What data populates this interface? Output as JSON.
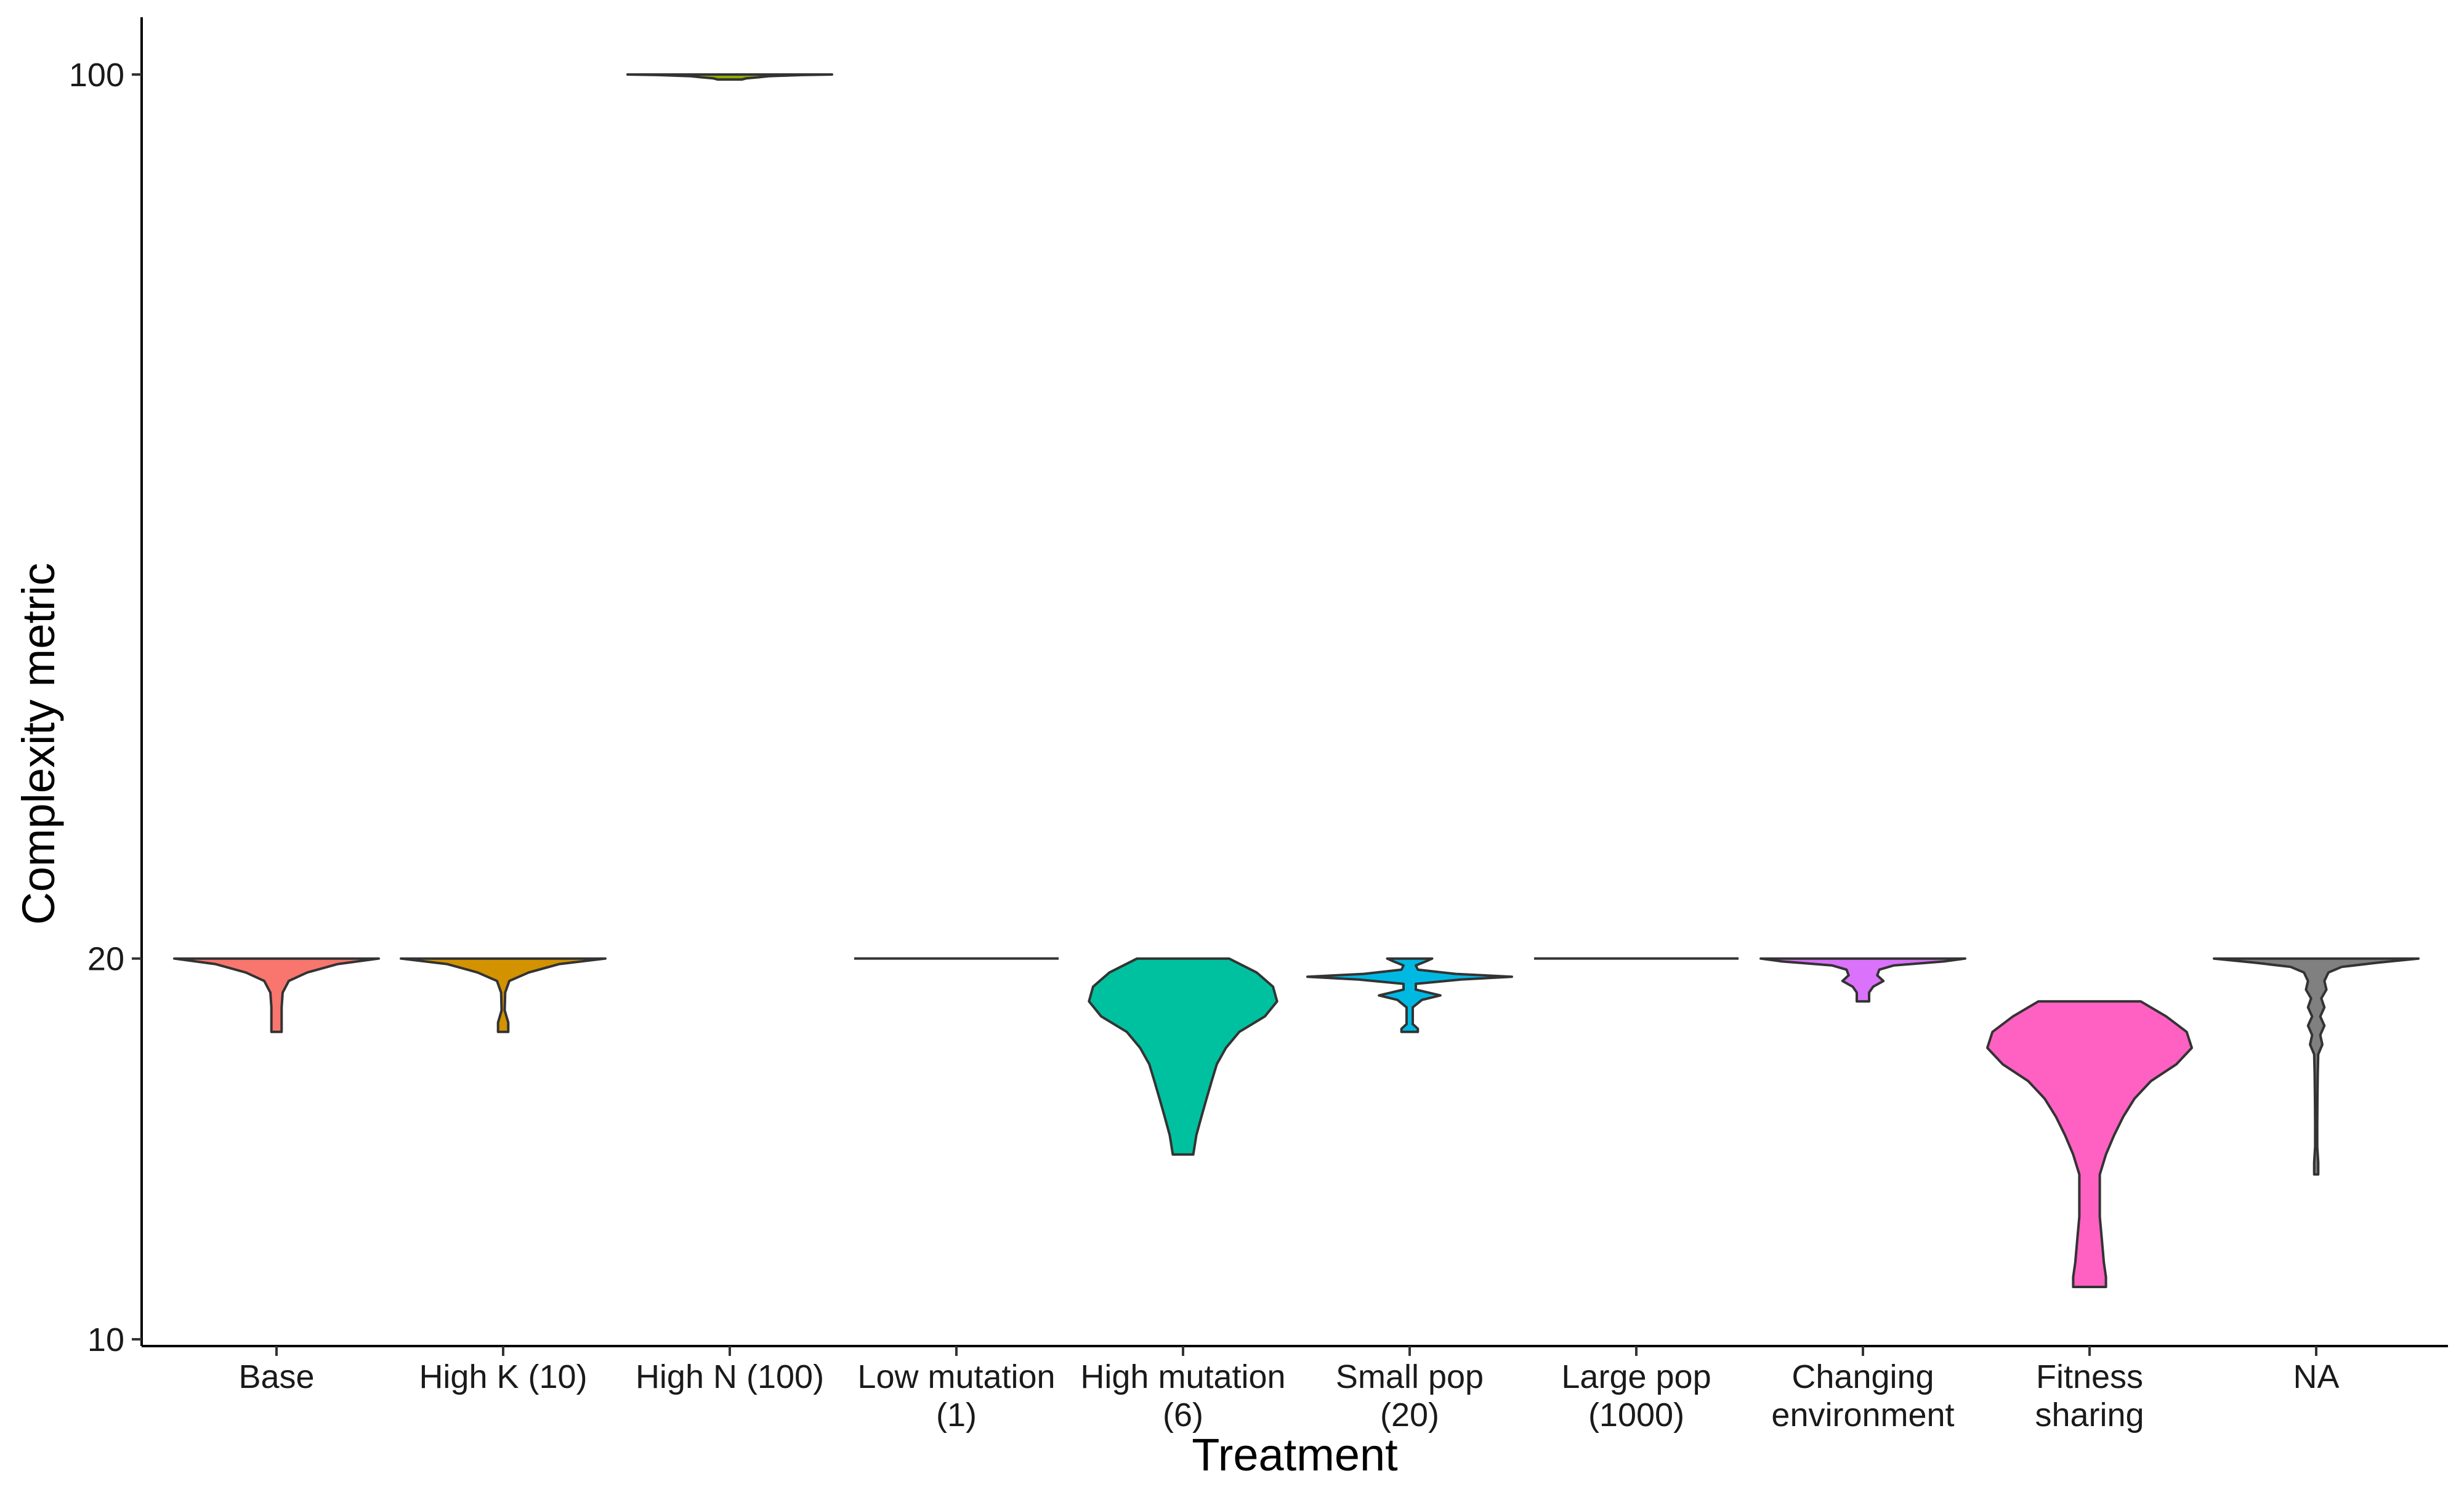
{
  "chart_data": {
    "type": "violin",
    "xlabel": "Treatment",
    "ylabel": "Complexity metric",
    "y_scale": "log10",
    "ylim": [
      10,
      110
    ],
    "y_ticks": [
      10,
      20,
      100
    ],
    "grid": false,
    "legend": "none",
    "categories": [
      [
        "Base"
      ],
      [
        "High K (10)"
      ],
      [
        "High N (100)"
      ],
      [
        "Low mutation",
        "(1)"
      ],
      [
        "High mutation",
        "(6)"
      ],
      [
        "Small pop",
        "(20)"
      ],
      [
        "Large pop",
        "(1000)"
      ],
      [
        "Changing",
        "environment"
      ],
      [
        "Fitness",
        "sharing"
      ],
      [
        "NA"
      ]
    ],
    "series": [
      {
        "category": "Base",
        "color": "#F8766D",
        "min": 17.5,
        "max": 20,
        "profile": [
          [
            20,
            1.0
          ],
          [
            19.8,
            0.6
          ],
          [
            19.5,
            0.3
          ],
          [
            19.2,
            0.12
          ],
          [
            18.8,
            0.06
          ],
          [
            18.3,
            0.05
          ],
          [
            17.8,
            0.05
          ],
          [
            17.5,
            0.05
          ]
        ]
      },
      {
        "category": "High K (10)",
        "color": "#D39200",
        "min": 17.5,
        "max": 20,
        "profile": [
          [
            20,
            1.0
          ],
          [
            19.8,
            0.55
          ],
          [
            19.5,
            0.25
          ],
          [
            19.2,
            0.06
          ],
          [
            18.8,
            0.02
          ],
          [
            18.2,
            0.015
          ],
          [
            17.8,
            0.05
          ],
          [
            17.5,
            0.05
          ]
        ]
      },
      {
        "category": "High N (100)",
        "color": "#93AA00",
        "min": 99.1,
        "max": 100,
        "profile": [
          [
            100,
            1.0
          ],
          [
            99.9,
            0.7
          ],
          [
            99.7,
            0.38
          ],
          [
            99.5,
            0.28
          ],
          [
            99.3,
            0.16
          ],
          [
            99.1,
            0.12
          ]
        ]
      },
      {
        "category": "Low mutation (1)",
        "color": "#00BA38",
        "min": 20,
        "max": 20,
        "profile": [
          [
            20,
            1.0
          ]
        ]
      },
      {
        "category": "High mutation (6)",
        "color": "#00C19F",
        "min": 14,
        "max": 20,
        "profile": [
          [
            20,
            0.45
          ],
          [
            19.5,
            0.72
          ],
          [
            19,
            0.88
          ],
          [
            18.5,
            0.92
          ],
          [
            18,
            0.8
          ],
          [
            17.5,
            0.55
          ],
          [
            17,
            0.42
          ],
          [
            16.5,
            0.33
          ],
          [
            16,
            0.28
          ],
          [
            15.5,
            0.23
          ],
          [
            15,
            0.18
          ],
          [
            14.5,
            0.13
          ],
          [
            14,
            0.1
          ]
        ]
      },
      {
        "category": "Small pop (20)",
        "color": "#00B9E3",
        "min": 17.5,
        "max": 20,
        "profile": [
          [
            20,
            0.22
          ],
          [
            19.9,
            0.16
          ],
          [
            19.75,
            0.06
          ],
          [
            19.6,
            0.08
          ],
          [
            19.45,
            0.45
          ],
          [
            19.35,
            1.0
          ],
          [
            19.25,
            0.5
          ],
          [
            19.1,
            0.06
          ],
          [
            18.9,
            0.06
          ],
          [
            18.7,
            0.3
          ],
          [
            18.55,
            0.12
          ],
          [
            18.3,
            0.03
          ],
          [
            18,
            0.03
          ],
          [
            17.75,
            0.03
          ],
          [
            17.6,
            0.08
          ],
          [
            17.5,
            0.08
          ]
        ]
      },
      {
        "category": "Large pop (1000)",
        "color": "#619CFF",
        "min": 20,
        "max": 20,
        "profile": [
          [
            20,
            1.0
          ]
        ]
      },
      {
        "category": "Changing environment",
        "color": "#DB72FB",
        "min": 18.5,
        "max": 20,
        "profile": [
          [
            20,
            1.0
          ],
          [
            19.9,
            0.8
          ],
          [
            19.75,
            0.3
          ],
          [
            19.6,
            0.16
          ],
          [
            19.4,
            0.14
          ],
          [
            19.2,
            0.2
          ],
          [
            19,
            0.1
          ],
          [
            18.8,
            0.06
          ],
          [
            18.6,
            0.06
          ],
          [
            18.5,
            0.06
          ]
        ]
      },
      {
        "category": "Fitness sharing",
        "color": "#FF61C3",
        "min": 11,
        "max": 18.5,
        "profile": [
          [
            18.5,
            0.5
          ],
          [
            18,
            0.75
          ],
          [
            17.5,
            0.95
          ],
          [
            17,
            1.0
          ],
          [
            16.5,
            0.85
          ],
          [
            16,
            0.6
          ],
          [
            15.5,
            0.44
          ],
          [
            15,
            0.33
          ],
          [
            14.5,
            0.24
          ],
          [
            14,
            0.16
          ],
          [
            13.5,
            0.1
          ],
          [
            13,
            0.1
          ],
          [
            12.5,
            0.1
          ],
          [
            12,
            0.12
          ],
          [
            11.5,
            0.14
          ],
          [
            11.2,
            0.16
          ],
          [
            11,
            0.16
          ]
        ]
      },
      {
        "category": "NA",
        "color": "#808080",
        "min": 13.5,
        "max": 20,
        "profile": [
          [
            20,
            1.0
          ],
          [
            19.85,
            0.6
          ],
          [
            19.7,
            0.25
          ],
          [
            19.5,
            0.12
          ],
          [
            19.2,
            0.08
          ],
          [
            18.9,
            0.1
          ],
          [
            18.6,
            0.05
          ],
          [
            18.3,
            0.08
          ],
          [
            18,
            0.04
          ],
          [
            17.7,
            0.08
          ],
          [
            17.4,
            0.04
          ],
          [
            17.1,
            0.06
          ],
          [
            16.8,
            0.02
          ],
          [
            16.2,
            0.015
          ],
          [
            15.5,
            0.012
          ],
          [
            14.8,
            0.01
          ],
          [
            14.2,
            0.01
          ],
          [
            13.8,
            0.02
          ],
          [
            13.5,
            0.02
          ]
        ]
      }
    ]
  }
}
